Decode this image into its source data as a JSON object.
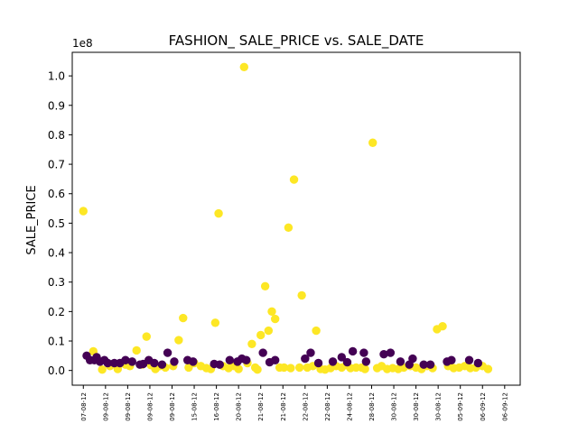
{
  "chart_data": {
    "type": "scatter",
    "title": "FASHION_ SALE_PRICE vs. SALE_DATE",
    "xlabel": "",
    "ylabel": "SALE_PRICE",
    "y_offset_label": "1e8",
    "ylim": [
      -0.05,
      1.08
    ],
    "y_scale_multiplier": 100000000,
    "xlim": [
      -0.5,
      19.7
    ],
    "grid": false,
    "legend": "none",
    "x_tick_labels": [
      "07-08-12",
      "09-08-12",
      "09-08-12",
      "09-08-12",
      "09-08-12",
      "15-08-12",
      "16-08-12",
      "20-08-12",
      "21-08-12",
      "21-08-12",
      "22-08-12",
      "22-08-12",
      "24-08-12",
      "28-08-12",
      "30-08-12",
      "30-08-12",
      "30-08-12",
      "05-09-12",
      "06-09-12",
      "06-09-12"
    ],
    "colors": {
      "yellow": "#fde725",
      "purple": "#440154",
      "axis": "#000000",
      "background": "#ffffff"
    },
    "series": [
      {
        "color": "yellow",
        "points": [
          [
            0.0,
            0.541
          ],
          [
            0.45,
            0.065
          ],
          [
            0.85,
            0.003
          ],
          [
            1.2,
            0.015
          ],
          [
            1.55,
            0.005
          ],
          [
            1.9,
            0.02
          ],
          [
            2.1,
            0.015
          ],
          [
            2.4,
            0.068
          ],
          [
            2.65,
            0.02
          ],
          [
            2.85,
            0.115
          ],
          [
            3.05,
            0.018
          ],
          [
            3.25,
            0.005
          ],
          [
            3.45,
            0.015
          ],
          [
            3.7,
            0.01
          ],
          [
            4.05,
            0.015
          ],
          [
            4.3,
            0.103
          ],
          [
            4.5,
            0.178
          ],
          [
            4.75,
            0.01
          ],
          [
            5.0,
            0.025
          ],
          [
            5.3,
            0.015
          ],
          [
            5.55,
            0.008
          ],
          [
            5.75,
            0.005
          ],
          [
            5.95,
            0.162
          ],
          [
            6.1,
            0.533
          ],
          [
            6.3,
            0.015
          ],
          [
            6.55,
            0.008
          ],
          [
            6.8,
            0.015
          ],
          [
            7.0,
            0.005
          ],
          [
            7.25,
            1.03
          ],
          [
            7.4,
            0.025
          ],
          [
            7.6,
            0.09
          ],
          [
            7.75,
            0.01
          ],
          [
            7.85,
            0.003
          ],
          [
            8.0,
            0.12
          ],
          [
            8.2,
            0.286
          ],
          [
            8.35,
            0.135
          ],
          [
            8.5,
            0.2
          ],
          [
            8.65,
            0.175
          ],
          [
            8.85,
            0.01
          ],
          [
            9.05,
            0.01
          ],
          [
            9.25,
            0.485
          ],
          [
            9.35,
            0.008
          ],
          [
            9.5,
            0.648
          ],
          [
            9.75,
            0.01
          ],
          [
            9.85,
            0.255
          ],
          [
            10.1,
            0.01
          ],
          [
            10.35,
            0.015
          ],
          [
            10.5,
            0.135
          ],
          [
            10.7,
            0.005
          ],
          [
            10.9,
            0.003
          ],
          [
            11.15,
            0.008
          ],
          [
            11.4,
            0.015
          ],
          [
            11.65,
            0.01
          ],
          [
            11.85,
            0.018
          ],
          [
            12.05,
            0.008
          ],
          [
            12.3,
            0.01
          ],
          [
            12.55,
            0.01
          ],
          [
            12.7,
            0.005
          ],
          [
            13.05,
            0.773
          ],
          [
            13.25,
            0.008
          ],
          [
            13.45,
            0.015
          ],
          [
            13.7,
            0.005
          ],
          [
            13.95,
            0.008
          ],
          [
            14.2,
            0.005
          ],
          [
            14.45,
            0.01
          ],
          [
            14.75,
            0.015
          ],
          [
            15.0,
            0.01
          ],
          [
            15.25,
            0.005
          ],
          [
            15.5,
            0.015
          ],
          [
            15.75,
            0.008
          ],
          [
            15.95,
            0.14
          ],
          [
            16.2,
            0.15
          ],
          [
            16.45,
            0.015
          ],
          [
            16.7,
            0.008
          ],
          [
            16.95,
            0.01
          ],
          [
            17.2,
            0.015
          ],
          [
            17.45,
            0.008
          ],
          [
            17.7,
            0.01
          ],
          [
            18.0,
            0.015
          ],
          [
            18.25,
            0.005
          ]
        ]
      },
      {
        "color": "purple",
        "points": [
          [
            0.15,
            0.05
          ],
          [
            0.3,
            0.035
          ],
          [
            0.5,
            0.035
          ],
          [
            0.6,
            0.045
          ],
          [
            0.75,
            0.03
          ],
          [
            0.95,
            0.035
          ],
          [
            1.1,
            0.025
          ],
          [
            1.4,
            0.025
          ],
          [
            1.65,
            0.025
          ],
          [
            1.9,
            0.035
          ],
          [
            2.2,
            0.03
          ],
          [
            2.55,
            0.02
          ],
          [
            2.7,
            0.022
          ],
          [
            2.95,
            0.035
          ],
          [
            3.2,
            0.025
          ],
          [
            3.55,
            0.02
          ],
          [
            3.8,
            0.06
          ],
          [
            4.1,
            0.03
          ],
          [
            4.7,
            0.035
          ],
          [
            4.95,
            0.03
          ],
          [
            5.9,
            0.022
          ],
          [
            6.15,
            0.02
          ],
          [
            6.6,
            0.035
          ],
          [
            6.95,
            0.03
          ],
          [
            7.15,
            0.04
          ],
          [
            7.35,
            0.035
          ],
          [
            8.1,
            0.06
          ],
          [
            8.4,
            0.028
          ],
          [
            8.65,
            0.035
          ],
          [
            10.0,
            0.04
          ],
          [
            10.25,
            0.06
          ],
          [
            10.6,
            0.025
          ],
          [
            11.25,
            0.03
          ],
          [
            11.65,
            0.045
          ],
          [
            11.9,
            0.028
          ],
          [
            12.15,
            0.065
          ],
          [
            12.65,
            0.06
          ],
          [
            12.75,
            0.03
          ],
          [
            13.55,
            0.055
          ],
          [
            13.85,
            0.06
          ],
          [
            14.3,
            0.03
          ],
          [
            14.7,
            0.02
          ],
          [
            14.85,
            0.04
          ],
          [
            15.35,
            0.02
          ],
          [
            15.65,
            0.02
          ],
          [
            16.4,
            0.03
          ],
          [
            16.6,
            0.035
          ],
          [
            17.4,
            0.035
          ],
          [
            17.8,
            0.025
          ]
        ]
      }
    ]
  }
}
